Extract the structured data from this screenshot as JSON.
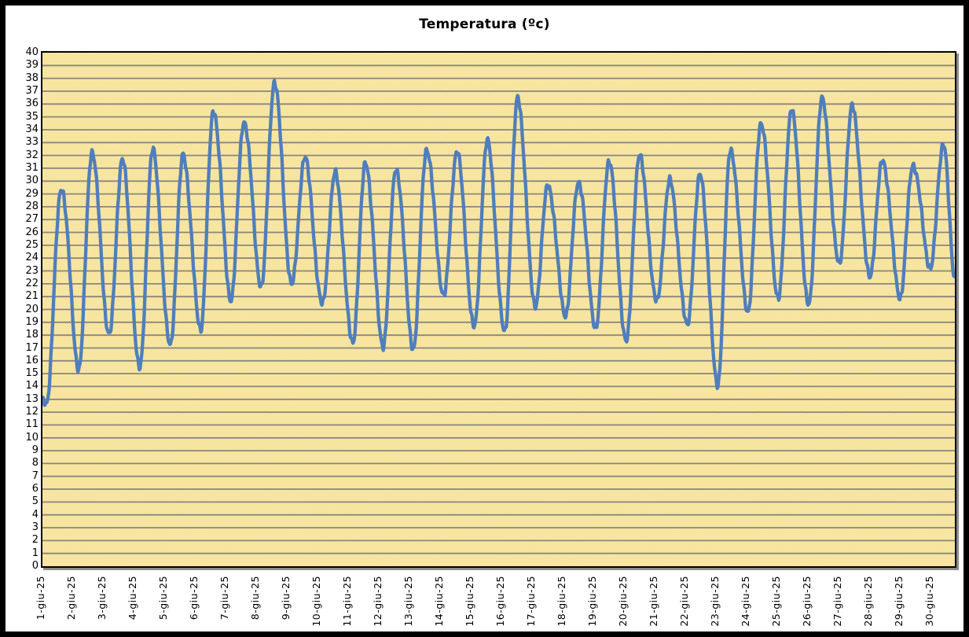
{
  "window": {
    "title": "Temperatura (ºc)"
  },
  "colors": {
    "line": "#4f7ebc",
    "gridline": "#87877d",
    "plot_border": "#000000",
    "plot_shadow": "#8c8c8c",
    "plot_bg_checker_a": "#f0cc4e",
    "plot_bg_checker_b": "#fffdf2",
    "outer_frame": "#000000",
    "page_background": "#ffffff",
    "label_text": "#000000"
  },
  "chart_data": {
    "type": "line",
    "title": "Temperatura (ºc)",
    "xlabel": "",
    "ylabel": "",
    "ylim": [
      0,
      40
    ],
    "y_tick_step": 1,
    "grid": "horizontal gridlines every 1 unit, gray",
    "legend": "none",
    "x_tick_labels": [
      "1-giu-25",
      "2-giu-25",
      "3-giu-25",
      "4-giu-25",
      "5-giu-25",
      "6-giu-25",
      "7-giu-25",
      "8-giu-25",
      "9-giu-25",
      "10-giu-25",
      "11-giu-25",
      "12-giu-25",
      "13-giu-25",
      "14-giu-25",
      "15-giu-25",
      "16-giu-25",
      "17-giu-25",
      "18-giu-25",
      "19-giu-25",
      "20-giu-25",
      "21-giu-25",
      "22-giu-25",
      "23-giu-25",
      "24-giu-25",
      "25-giu-25",
      "26-giu-25",
      "27-giu-25",
      "28-giu-25",
      "29-giu-25",
      "30-giu-25"
    ],
    "series": [
      {
        "name": "Temperatura",
        "unit": "°C",
        "sampling": "sub-daily diurnal cycle: minimum near 05:00, maximum near 15:00 each day",
        "start_value": 12.8,
        "end_value": 22.4,
        "min_hour": 4.8,
        "max_hour": 15,
        "daily": [
          {
            "date": "1-giu-25",
            "min": 12.7,
            "max": 29.5
          },
          {
            "date": "2-giu-25",
            "min": 15.4,
            "max": 32.3
          },
          {
            "date": "3-giu-25",
            "min": 18.0,
            "max": 31.7
          },
          {
            "date": "4-giu-25",
            "min": 15.4,
            "max": 32.4
          },
          {
            "date": "5-giu-25",
            "min": 17.2,
            "max": 32.0
          },
          {
            "date": "6-giu-25",
            "min": 18.5,
            "max": 35.5
          },
          {
            "date": "7-giu-25",
            "min": 20.8,
            "max": 34.7
          },
          {
            "date": "8-giu-25",
            "min": 21.8,
            "max": 37.7
          },
          {
            "date": "9-giu-25",
            "min": 21.9,
            "max": 31.8
          },
          {
            "date": "10-giu-25",
            "min": 20.4,
            "max": 30.6
          },
          {
            "date": "11-giu-25",
            "min": 17.4,
            "max": 31.4
          },
          {
            "date": "12-giu-25",
            "min": 17.2,
            "max": 31.0
          },
          {
            "date": "13-giu-25",
            "min": 17.0,
            "max": 32.5
          },
          {
            "date": "14-giu-25",
            "min": 21.1,
            "max": 32.3
          },
          {
            "date": "15-giu-25",
            "min": 18.6,
            "max": 33.1
          },
          {
            "date": "16-giu-25",
            "min": 18.2,
            "max": 36.4
          },
          {
            "date": "17-giu-25",
            "min": 20.3,
            "max": 29.7
          },
          {
            "date": "18-giu-25",
            "min": 19.6,
            "max": 30.0
          },
          {
            "date": "19-giu-25",
            "min": 18.6,
            "max": 31.6
          },
          {
            "date": "20-giu-25",
            "min": 17.5,
            "max": 32.0
          },
          {
            "date": "21-giu-25",
            "min": 20.6,
            "max": 30.0
          },
          {
            "date": "22-giu-25",
            "min": 18.8,
            "max": 30.5
          },
          {
            "date": "23-giu-25",
            "min": 14.2,
            "max": 32.5
          },
          {
            "date": "24-giu-25",
            "min": 19.9,
            "max": 34.6
          },
          {
            "date": "25-giu-25",
            "min": 20.9,
            "max": 35.6
          },
          {
            "date": "26-giu-25",
            "min": 20.3,
            "max": 36.4
          },
          {
            "date": "27-giu-25",
            "min": 23.5,
            "max": 35.8
          },
          {
            "date": "28-giu-25",
            "min": 22.6,
            "max": 31.6
          },
          {
            "date": "29-giu-25",
            "min": 21.0,
            "max": 31.3
          },
          {
            "date": "30-giu-25",
            "min": 23.3,
            "max": 33.0
          }
        ]
      }
    ]
  }
}
